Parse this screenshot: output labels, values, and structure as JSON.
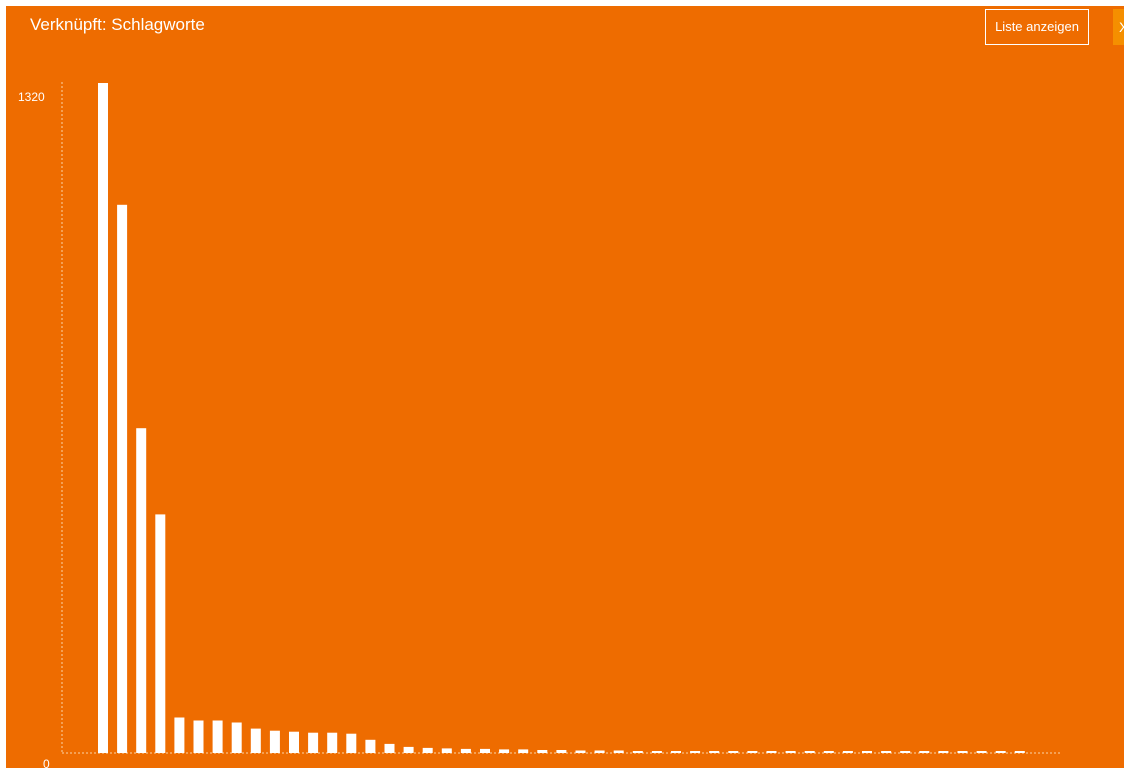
{
  "header": {
    "title": "Verknüpft: Schlagworte",
    "list_button_label": "Liste anzeigen",
    "close_label": "X"
  },
  "colors": {
    "background": "#ee6c00",
    "bars": "#ffffff",
    "axis": "#fbd3a8",
    "close_button": "#f58f00"
  },
  "chart_data": {
    "type": "bar",
    "title": "",
    "xlabel": "",
    "ylabel": "",
    "ylim": [
      0,
      1320
    ],
    "yticks": [
      "1320",
      "0"
    ],
    "grid": false,
    "values": [
      1320,
      1080,
      640,
      470,
      70,
      64,
      64,
      60,
      48,
      44,
      42,
      40,
      40,
      38,
      26,
      18,
      12,
      10,
      9,
      8,
      8,
      7,
      7,
      6,
      6,
      5,
      5,
      5,
      4,
      4,
      4,
      4,
      4,
      3,
      3,
      3,
      3,
      3,
      3,
      3,
      3,
      3,
      3,
      2,
      2,
      2,
      2,
      2,
      2
    ]
  }
}
